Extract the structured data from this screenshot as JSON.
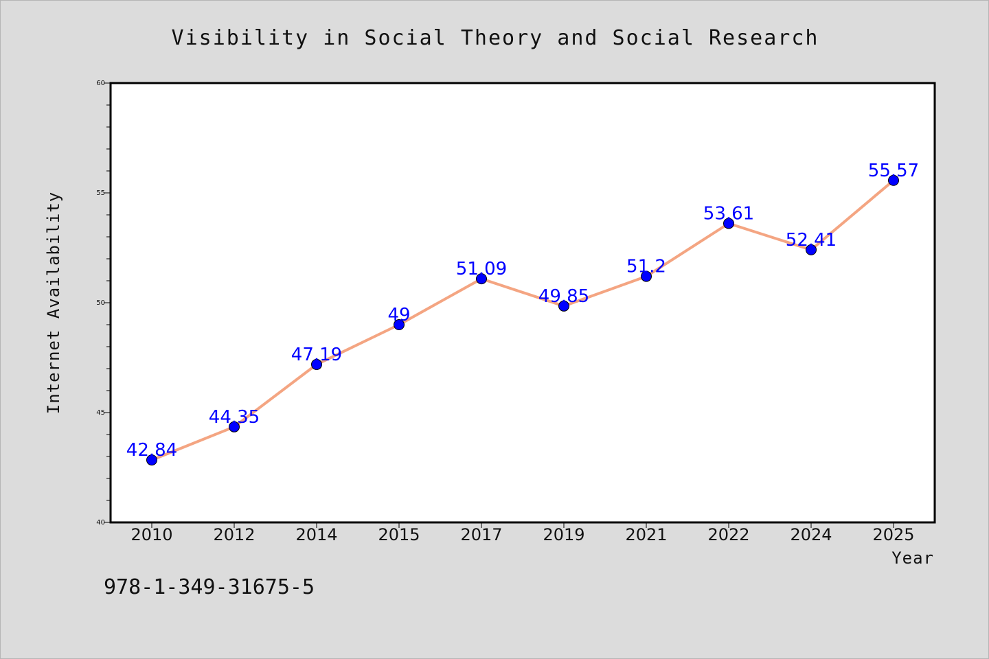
{
  "chart_data": {
    "type": "line",
    "title": "Visibility in Social Theory and Social Research",
    "xlabel": "Year",
    "ylabel": "Internet Availability",
    "categories": [
      "2010",
      "2012",
      "2014",
      "2015",
      "2017",
      "2019",
      "2021",
      "2022",
      "2024",
      "2025"
    ],
    "values": [
      42.84,
      44.35,
      47.19,
      49,
      51.09,
      49.85,
      51.2,
      53.61,
      52.41,
      55.57
    ],
    "data_labels": [
      "42.84",
      "44.35",
      "47.19",
      "49",
      "51.09",
      "49.85",
      "51.2",
      "53.61",
      "52.41",
      "55.57"
    ],
    "ylim": [
      40,
      60
    ],
    "yticks": [
      "40",
      "45",
      "50",
      "55",
      "60"
    ],
    "grid": false,
    "line_color": "#f4a582",
    "marker_color": "#0000ff",
    "label_color": "#0000ff"
  },
  "footer": {
    "isbn": "978-1-349-31675-5"
  }
}
